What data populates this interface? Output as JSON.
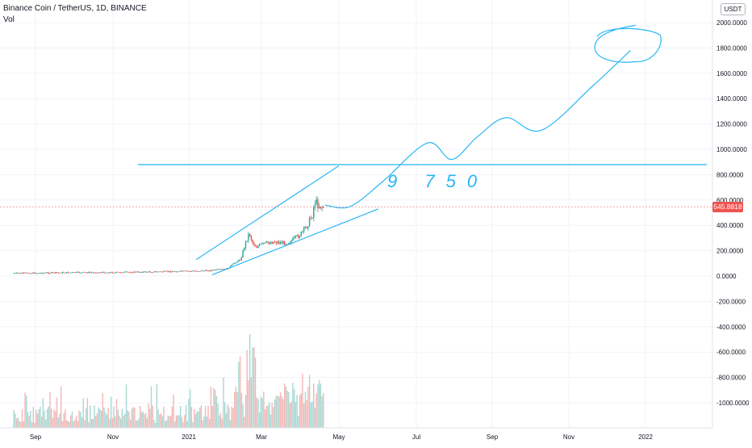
{
  "header": {
    "title": "Binance Coin / TetherUS, 1D, BINANCE",
    "volume_label": "Vol",
    "unit": "USDT"
  },
  "last_price": {
    "label": "545.8818",
    "value": 545.8818,
    "color": "#ef5350"
  },
  "colors": {
    "up": "#26a69a",
    "down": "#ef5350",
    "drawing": "#29b6f6",
    "price_line": "#f5a3a3"
  },
  "chart_data": {
    "type": "candlestick",
    "x_ticks": [
      "Sep",
      "Nov",
      "2021",
      "Mar",
      "May",
      "Jul",
      "Sep",
      "Nov",
      "2022"
    ],
    "y_ticks": [
      "2000.0000",
      "1800.0000",
      "1600.0000",
      "1400.0000",
      "1200.0000",
      "1000.0000",
      "800.0000",
      "600.0000",
      "400.0000",
      "200.0000",
      "0.0000",
      "-200.0000",
      "-400.0000",
      "-600.0000",
      "-800.0000",
      "-1000.0000"
    ],
    "y_tick_values": [
      2000,
      1800,
      1600,
      1400,
      1200,
      1000,
      800,
      600,
      400,
      200,
      0,
      -200,
      -400,
      -600,
      -800,
      -1000
    ],
    "ylim": [
      -1230,
      2100
    ],
    "price_series": {
      "name": "BNBUSDT",
      "dates": [
        "2020-08-15",
        "2020-09-01",
        "2020-10-01",
        "2020-11-01",
        "2020-12-01",
        "2021-01-01",
        "2021-01-15",
        "2021-02-01",
        "2021-02-08",
        "2021-02-12",
        "2021-02-16",
        "2021-02-19",
        "2021-02-22",
        "2021-02-25",
        "2021-03-01",
        "2021-03-10",
        "2021-03-20",
        "2021-03-25",
        "2021-04-01",
        "2021-04-06",
        "2021-04-10",
        "2021-04-12",
        "2021-04-15",
        "2021-04-19"
      ],
      "close": [
        22,
        24,
        28,
        28,
        33,
        38,
        42,
        55,
        110,
        130,
        260,
        340,
        260,
        230,
        250,
        270,
        260,
        280,
        330,
        400,
        480,
        590,
        560,
        545
      ]
    },
    "volume_series": {
      "name": "Vol",
      "range_label": "Sep 2020 – Apr 2021",
      "peak_dates": [
        "2021-02-10",
        "2021-02-19",
        "2021-02-23"
      ]
    },
    "horizontal_level": {
      "value": 880
    },
    "channel": {
      "upper": [
        {
          "date": "2021-01-07",
          "value": 130
        },
        {
          "date": "2021-05-01",
          "value": 870
        }
      ],
      "lower": [
        {
          "date": "2021-01-20",
          "value": 10
        },
        {
          "date": "2021-06-01",
          "value": 530
        }
      ]
    },
    "projection": {
      "points": [
        {
          "date": "2021-04-20",
          "value": 560
        },
        {
          "date": "2021-05-10",
          "value": 550
        },
        {
          "date": "2021-06-05",
          "value": 750
        },
        {
          "date": "2021-07-10",
          "value": 1050
        },
        {
          "date": "2021-07-30",
          "value": 920
        },
        {
          "date": "2021-08-20",
          "value": 1100
        },
        {
          "date": "2021-09-12",
          "value": 1250
        },
        {
          "date": "2021-10-10",
          "value": 1150
        },
        {
          "date": "2021-11-20",
          "value": 1500
        },
        {
          "date": "2021-12-20",
          "value": 1780
        }
      ],
      "target_circle": {
        "date": "2021-12-18",
        "value": 1800
      },
      "handwritten_note": "9 750"
    }
  }
}
